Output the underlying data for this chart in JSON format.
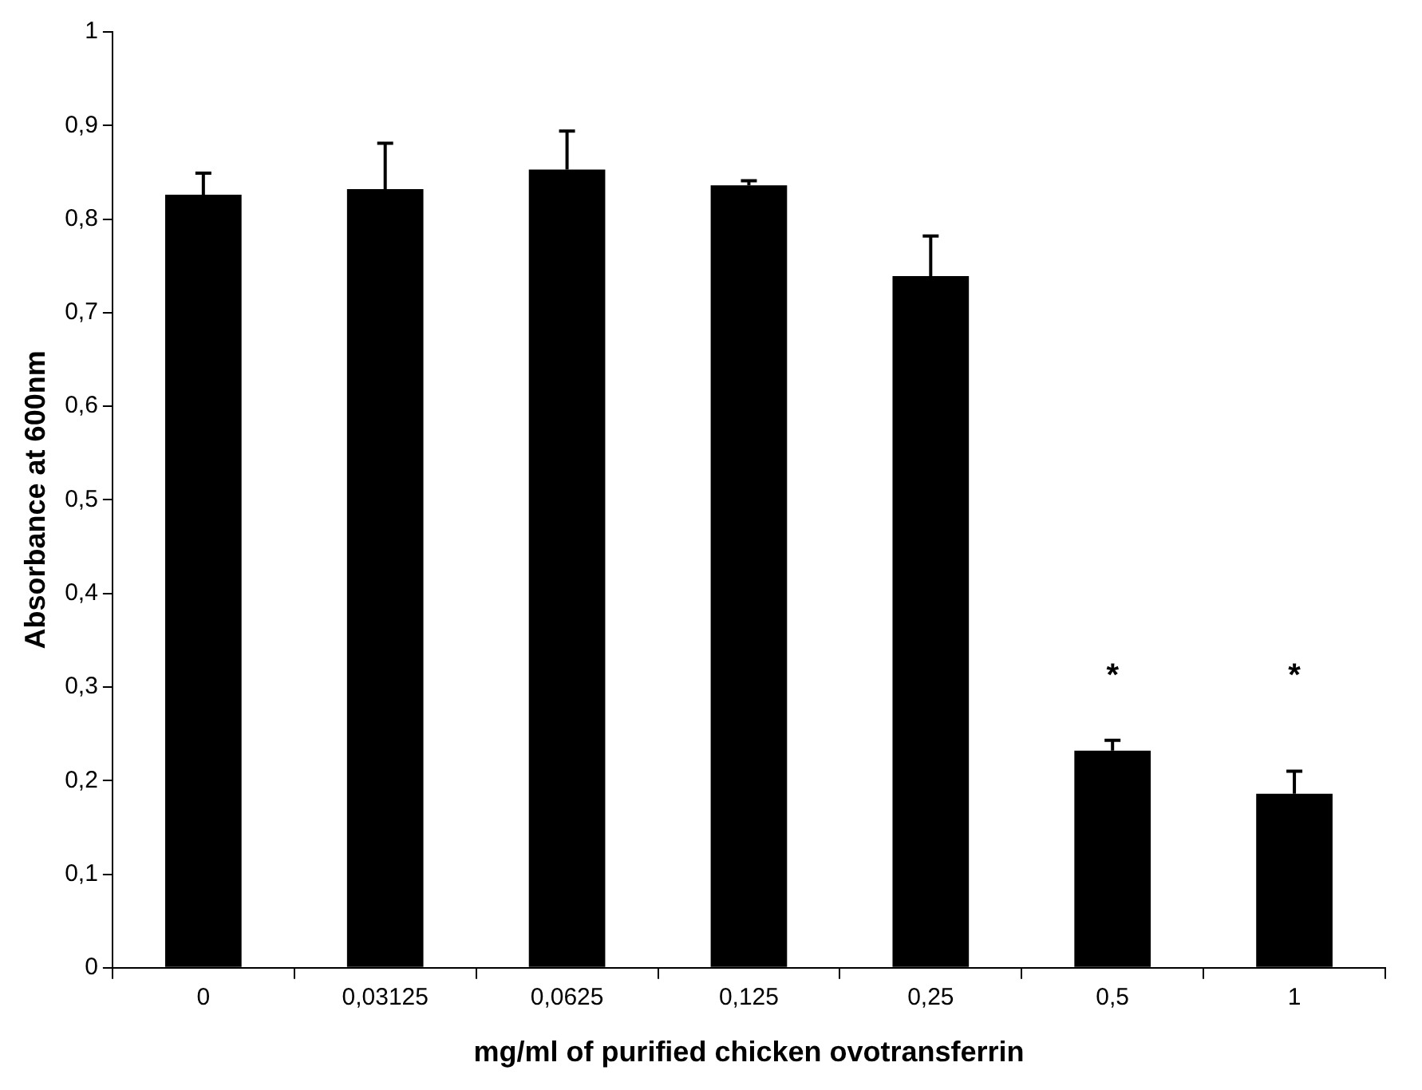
{
  "chart_data": {
    "type": "bar",
    "xlabel": "mg/ml of purified chicken ovotransferrin",
    "ylabel": "Absorbance at 600nm",
    "categories": [
      "0",
      "0,03125",
      "0,0625",
      "0,125",
      "0,25",
      "0,5",
      "1"
    ],
    "values": [
      0.826,
      0.832,
      0.853,
      0.836,
      0.739,
      0.232,
      0.186
    ],
    "errors": [
      [
        0.826,
        0.849
      ],
      [
        0.832,
        0.881
      ],
      [
        0.853,
        0.894
      ],
      [
        0.836,
        0.841
      ],
      [
        0.739,
        0.782
      ],
      [
        0.232,
        0.243
      ],
      [
        0.186,
        0.21
      ]
    ],
    "color": "#000000",
    "ylim": [
      0,
      1
    ],
    "yticks": [
      0,
      {
        "value": 0.1,
        "label": "0,1"
      },
      {
        "value": 0.2,
        "label": "0,2"
      },
      {
        "value": 0.3,
        "label": "0,3"
      },
      {
        "value": 0.4,
        "label": "0,4"
      },
      {
        "value": 0.5,
        "label": "0,5"
      },
      {
        "value": 0.6,
        "label": "0,6"
      },
      {
        "value": 0.7,
        "label": "0,7"
      },
      {
        "value": 0.8,
        "label": "0,8"
      },
      {
        "value": 0.9,
        "label": "0,9"
      },
      1
    ],
    "annotations": [
      "*",
      "*"
    ],
    "grid": false,
    "legend": false
  }
}
